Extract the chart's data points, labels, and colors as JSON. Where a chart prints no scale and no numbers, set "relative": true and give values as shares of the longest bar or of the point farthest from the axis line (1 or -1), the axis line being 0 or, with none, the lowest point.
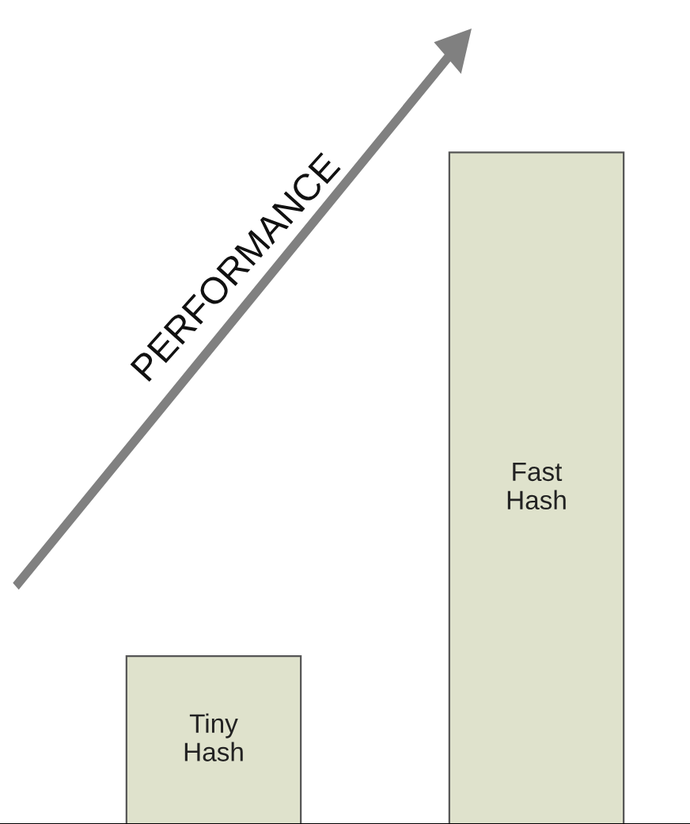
{
  "chart_data": {
    "type": "bar",
    "relative": true,
    "categories": [
      "Tiny Hash",
      "Fast Hash"
    ],
    "values": [
      0.25,
      1
    ],
    "color": "#dfe2cc",
    "annotations": [
      "PERFORMANCE"
    ]
  }
}
